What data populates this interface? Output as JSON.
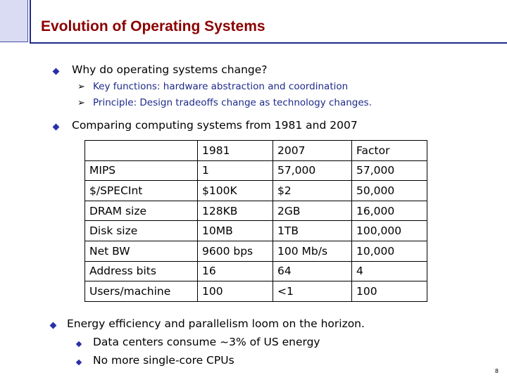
{
  "slide": {
    "title": "Evolution of Operating Systems",
    "page_number": "8"
  },
  "bullets": {
    "why": {
      "text": "Why do operating systems change?",
      "subpoints": [
        "Key functions: hardware abstraction and coordination",
        "Principle: Design tradeoffs change as technology changes."
      ]
    },
    "comparing": {
      "text": "Comparing computing systems from 1981 and 2007"
    },
    "energy": {
      "text": "Energy efficiency and parallelism loom on the horizon.",
      "subpoints": [
        "Data centers consume ~3% of US energy",
        "No more single-core CPUs"
      ]
    }
  },
  "table": {
    "header": [
      "",
      "1981",
      "2007",
      "Factor"
    ],
    "rows": [
      [
        "MIPS",
        "1",
        "57,000",
        "57,000"
      ],
      [
        "$/SPECInt",
        "$100K",
        "$2",
        "50,000"
      ],
      [
        "DRAM size",
        "128KB",
        "2GB",
        "16,000"
      ],
      [
        "Disk size",
        "10MB",
        "1TB",
        "100,000"
      ],
      [
        "Net BW",
        "9600 bps",
        "100 Mb/s",
        "10,000"
      ],
      [
        "Address bits",
        "16",
        "64",
        "4"
      ],
      [
        "Users/machine",
        "100",
        "<1",
        "100"
      ]
    ]
  },
  "colors": {
    "title": "#8b0000",
    "accent": "#1e2a8a",
    "bullet": "#2a2fa8"
  }
}
